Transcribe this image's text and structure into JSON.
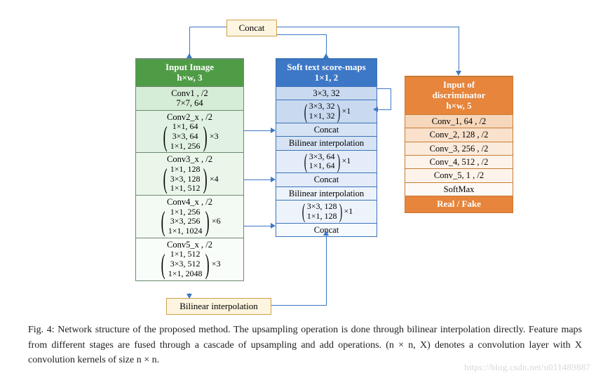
{
  "figure_number": "Fig. 4",
  "caption_text": "Network structure of the proposed method. The upsampling operation is done through bilinear interpolation directly. Feature maps from different stages are fused through a cascade of upsampling and add operations. (n × n, X) denotes a convolution layer with X convolution kernels of size n × n.",
  "watermark": "https://blog.csdn.net/u011489887",
  "concat_label": "Concat",
  "bilinear_label": "Bilinear interpolation",
  "colors": {
    "green_header": "#4f9c47",
    "blue_header": "#3d78c6",
    "orange_header": "#e6853b",
    "connector": "#3d78c6",
    "yellow_box_bg": "#fdf5df",
    "yellow_box_border": "#cfa24d"
  },
  "green_col": {
    "header1": "Input Image",
    "header2": "h×w, 3",
    "cells": [
      {
        "kind": "plain",
        "shade": "g1",
        "lines": [
          "Conv1 , /2",
          "7×7, 64"
        ]
      },
      {
        "kind": "group",
        "shade": "g2",
        "title": "Conv2_x , /2",
        "items": [
          "1×1, 64",
          "3×3, 64",
          "1×1, 256"
        ],
        "mult": "×3"
      },
      {
        "kind": "group",
        "shade": "g3",
        "title": "Conv3_x , /2",
        "items": [
          "1×1, 128",
          "3×3, 128",
          "1×1, 512"
        ],
        "mult": "×4"
      },
      {
        "kind": "group",
        "shade": "g4",
        "title": "Conv4_x , /2",
        "items": [
          "1×1, 256",
          "3×3, 256",
          "1×1, 1024"
        ],
        "mult": "×6"
      },
      {
        "kind": "group",
        "shade": "g5",
        "title": "Conv5_x , /2",
        "items": [
          "1×1, 512",
          "3×3, 512",
          "1×1, 2048"
        ],
        "mult": "×3"
      }
    ]
  },
  "blue_col": {
    "header1": "Soft text score-maps",
    "header2": "1×1, 2",
    "cells": [
      {
        "kind": "plain",
        "shade": "b1",
        "lines": [
          "3×3, 32"
        ]
      },
      {
        "kind": "group2",
        "shade": "b1",
        "items": [
          "3×3, 32",
          "1×1, 32"
        ],
        "mult": "×1"
      },
      {
        "kind": "plain",
        "shade": "b2",
        "lines": [
          "Concat"
        ]
      },
      {
        "kind": "plain",
        "shade": "b2",
        "lines": [
          "Bilinear interpolation"
        ]
      },
      {
        "kind": "group2",
        "shade": "b3",
        "items": [
          "3×3, 64",
          "1×1, 64"
        ],
        "mult": "×1"
      },
      {
        "kind": "plain",
        "shade": "b3",
        "lines": [
          "Concat"
        ]
      },
      {
        "kind": "plain",
        "shade": "b4",
        "lines": [
          "Bilinear interpolation"
        ]
      },
      {
        "kind": "group2",
        "shade": "b4",
        "items": [
          "3×3, 128",
          "1×1, 128"
        ],
        "mult": "×1"
      },
      {
        "kind": "plain",
        "shade": "b5",
        "lines": [
          "Concat"
        ]
      }
    ]
  },
  "orange_col": {
    "header1": "Input of",
    "header2": "discriminator",
    "header3": "h×w, 5",
    "cells": [
      {
        "shade": "o1",
        "text": "Conv_1, 64 , /2"
      },
      {
        "shade": "o2",
        "text": "Conv_2, 128 , /2"
      },
      {
        "shade": "o3",
        "text": "Conv_3, 256 , /2"
      },
      {
        "shade": "o4",
        "text": "Conv_4, 512 , /2"
      },
      {
        "shade": "o4",
        "text": "Conv_5, 1 , /2"
      },
      {
        "shade": "o5",
        "text": "SoftMax"
      }
    ],
    "footer": "Real / Fake"
  }
}
